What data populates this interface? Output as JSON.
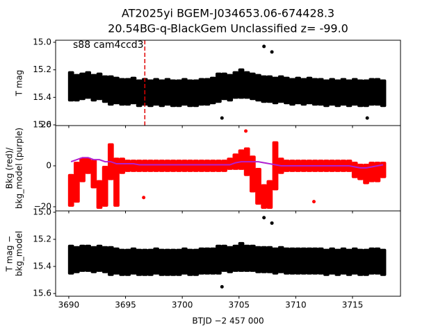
{
  "chart_data": [
    {
      "type": "errorbar",
      "title": [
        "AT2025yi  BGEM-J034653.06-674428.3",
        "20.54BG-q-BlackGem Unclassified z= -99.0"
      ],
      "annotation": "s88 cam4ccd3",
      "marker_x": 3696.7,
      "marker_color": "#e00000",
      "ylabel": [
        "T mag"
      ],
      "xlim": [
        3688.84,
        3719.23
      ],
      "ylim": [
        15.605,
        14.985
      ],
      "yticks": [
        {
          "value": 15.0,
          "label": "15.0"
        },
        15.2,
        15.4,
        15.6
      ],
      "x": [
        3690.2,
        3690.7,
        3691.2,
        3691.7,
        3692.2,
        3692.7,
        3693.2,
        3693.7,
        3694.2,
        3694.7,
        3695.2,
        3695.7,
        3696.2,
        3696.7,
        3697.2,
        3697.7,
        3698.2,
        3698.7,
        3699.2,
        3699.7,
        3700.2,
        3700.7,
        3701.2,
        3701.7,
        3702.2,
        3702.7,
        3703.2,
        3703.7,
        3704.2,
        3704.7,
        3705.2,
        3705.7,
        3706.2,
        3706.7,
        3707.2,
        3707.7,
        3708.2,
        3708.7,
        3709.2,
        3709.7,
        3710.2,
        3710.7,
        3711.2,
        3711.7,
        3712.2,
        3712.7,
        3713.2,
        3713.7,
        3714.2,
        3714.7,
        3715.2,
        3715.7,
        3716.2,
        3716.7,
        3717.2,
        3717.7
      ],
      "series": [
        {
          "color": "#000000",
          "values": [
            15.32,
            15.33,
            15.32,
            15.31,
            15.33,
            15.32,
            15.34,
            15.35,
            15.35,
            15.36,
            15.36,
            15.35,
            15.37,
            15.36,
            15.37,
            15.36,
            15.37,
            15.36,
            15.37,
            15.37,
            15.36,
            15.37,
            15.37,
            15.36,
            15.36,
            15.35,
            15.33,
            15.32,
            15.33,
            15.31,
            15.3,
            15.31,
            15.32,
            15.33,
            15.34,
            15.34,
            15.35,
            15.34,
            15.35,
            15.36,
            15.35,
            15.36,
            15.35,
            15.36,
            15.36,
            15.37,
            15.36,
            15.37,
            15.36,
            15.37,
            15.36,
            15.37,
            15.37,
            15.36,
            15.36,
            15.37
          ],
          "errors": [
            0.11,
            0.1,
            0.1,
            0.1,
            0.1,
            0.1,
            0.1,
            0.11,
            0.1,
            0.1,
            0.1,
            0.1,
            0.1,
            0.1,
            0.1,
            0.1,
            0.1,
            0.1,
            0.1,
            0.1,
            0.1,
            0.1,
            0.1,
            0.1,
            0.1,
            0.1,
            0.11,
            0.1,
            0.1,
            0.1,
            0.11,
            0.1,
            0.1,
            0.1,
            0.1,
            0.1,
            0.1,
            0.1,
            0.1,
            0.1,
            0.1,
            0.1,
            0.1,
            0.1,
            0.1,
            0.1,
            0.1,
            0.1,
            0.1,
            0.1,
            0.1,
            0.1,
            0.1,
            0.1,
            0.1,
            0.1
          ]
        },
        {
          "color": "#000000",
          "style": "points",
          "x": [
            3703.5,
            3707.2,
            3707.9,
            3716.3
          ],
          "values": [
            15.55,
            15.03,
            15.07,
            15.55
          ]
        }
      ]
    },
    {
      "type": "errorbar",
      "ylabel": [
        "Bkg (red)/",
        "bkg_model (purple)"
      ],
      "xlim": [
        3688.84,
        3719.23
      ],
      "ylim": [
        -22.03,
        19.66
      ],
      "yticks": [
        {
          "value": -20,
          "label": "−20"
        },
        0,
        20
      ],
      "x": [
        3690.2,
        3690.7,
        3691.2,
        3691.7,
        3692.2,
        3692.7,
        3693.2,
        3693.7,
        3694.2,
        3694.7,
        3695.2,
        3695.7,
        3696.2,
        3696.7,
        3697.2,
        3697.7,
        3698.2,
        3698.7,
        3699.2,
        3699.7,
        3700.2,
        3700.7,
        3701.2,
        3701.7,
        3702.2,
        3702.7,
        3703.2,
        3703.7,
        3704.2,
        3704.7,
        3705.2,
        3705.7,
        3706.2,
        3706.7,
        3707.2,
        3707.7,
        3708.2,
        3708.7,
        3709.2,
        3709.7,
        3710.2,
        3710.7,
        3711.2,
        3711.7,
        3712.2,
        3712.7,
        3713.2,
        3713.7,
        3714.2,
        3714.7,
        3715.2,
        3715.7,
        3716.2,
        3716.7,
        3717.2,
        3717.7
      ],
      "series": [
        {
          "color": "#ff0000",
          "values": [
            -12,
            -8,
            -2,
            0,
            -4,
            -14,
            -10,
            2,
            -8,
            0,
            0,
            0,
            0,
            0,
            0,
            0,
            0,
            0,
            0,
            0,
            0,
            0,
            0,
            0,
            0,
            0,
            0,
            0,
            1,
            2,
            3,
            2,
            -4,
            -10,
            -15,
            -14,
            0,
            0,
            0,
            0,
            0,
            0,
            0,
            0,
            0,
            0,
            0,
            0,
            0,
            0,
            -2,
            -3,
            -4,
            -3,
            -3,
            -2
          ],
          "errors": [
            8,
            10,
            6,
            4,
            7,
            7,
            10,
            9,
            12,
            4,
            3,
            3,
            3,
            3,
            3,
            3,
            3,
            3,
            3,
            3,
            3,
            3,
            3,
            3,
            3,
            3,
            3,
            3,
            3,
            4,
            5,
            7,
            9,
            9,
            6,
            7,
            12,
            4,
            3,
            3,
            3,
            3,
            3,
            3,
            3,
            3,
            3,
            3,
            3,
            3,
            4,
            4,
            5,
            5,
            5,
            4
          ]
        },
        {
          "color": "#ff0000",
          "style": "points",
          "x": [
            3696.6,
            3705.6,
            3711.6
          ],
          "values": [
            -15.5,
            17,
            -17.5
          ]
        },
        {
          "color": "#b020d0",
          "style": "line",
          "values": [
            2,
            3,
            4,
            4,
            3,
            3,
            2,
            2,
            1,
            1,
            1,
            1,
            0.5,
            0.5,
            0.5,
            0.5,
            0.5,
            0.5,
            0.5,
            0.5,
            0.5,
            0.5,
            0.5,
            0.5,
            0.5,
            0.5,
            0.5,
            0.5,
            0.5,
            1.5,
            2,
            2,
            2,
            2,
            1.5,
            1,
            0.5,
            0,
            0,
            0,
            0,
            0,
            0,
            0,
            0,
            0,
            0,
            0,
            0,
            0,
            -0.5,
            -1,
            -1,
            -0.5,
            0,
            0.5
          ]
        }
      ]
    },
    {
      "type": "errorbar",
      "ylabel": [
        "T mag −",
        "bkg_model"
      ],
      "xlabel": "BTJD −2 457 000",
      "xlim": [
        3688.84,
        3719.23
      ],
      "ylim": [
        15.62,
        14.99
      ],
      "xticks": [
        3690,
        3695,
        3700,
        3705,
        3710,
        3715
      ],
      "yticks": [
        {
          "value": 15.0,
          "label": "15.0"
        },
        15.2,
        15.4,
        15.6
      ],
      "x": [
        3690.2,
        3690.7,
        3691.2,
        3691.7,
        3692.2,
        3692.7,
        3693.2,
        3693.7,
        3694.2,
        3694.7,
        3695.2,
        3695.7,
        3696.2,
        3696.7,
        3697.2,
        3697.7,
        3698.2,
        3698.7,
        3699.2,
        3699.7,
        3700.2,
        3700.7,
        3701.2,
        3701.7,
        3702.2,
        3702.7,
        3703.2,
        3703.7,
        3704.2,
        3704.7,
        3705.2,
        3705.7,
        3706.2,
        3706.7,
        3707.2,
        3707.7,
        3708.2,
        3708.7,
        3709.2,
        3709.7,
        3710.2,
        3710.7,
        3711.2,
        3711.7,
        3712.2,
        3712.7,
        3713.2,
        3713.7,
        3714.2,
        3714.7,
        3715.2,
        3715.7,
        3716.2,
        3716.7,
        3717.2,
        3717.7
      ],
      "series": [
        {
          "color": "#000000",
          "values": [
            15.35,
            15.35,
            15.34,
            15.34,
            15.35,
            15.34,
            15.35,
            15.36,
            15.36,
            15.37,
            15.37,
            15.36,
            15.37,
            15.37,
            15.37,
            15.36,
            15.37,
            15.37,
            15.37,
            15.37,
            15.36,
            15.37,
            15.37,
            15.36,
            15.36,
            15.36,
            15.35,
            15.34,
            15.35,
            15.34,
            15.33,
            15.34,
            15.34,
            15.35,
            15.35,
            15.35,
            15.36,
            15.35,
            15.36,
            15.36,
            15.36,
            15.36,
            15.36,
            15.36,
            15.36,
            15.37,
            15.36,
            15.37,
            15.36,
            15.37,
            15.36,
            15.37,
            15.37,
            15.36,
            15.36,
            15.37
          ],
          "errors": [
            0.11,
            0.1,
            0.1,
            0.1,
            0.1,
            0.1,
            0.1,
            0.11,
            0.1,
            0.1,
            0.1,
            0.1,
            0.1,
            0.1,
            0.1,
            0.1,
            0.1,
            0.1,
            0.1,
            0.1,
            0.1,
            0.1,
            0.1,
            0.1,
            0.1,
            0.1,
            0.11,
            0.1,
            0.1,
            0.1,
            0.11,
            0.1,
            0.1,
            0.1,
            0.1,
            0.1,
            0.1,
            0.1,
            0.1,
            0.1,
            0.1,
            0.1,
            0.1,
            0.1,
            0.1,
            0.1,
            0.1,
            0.1,
            0.1,
            0.1,
            0.1,
            0.1,
            0.1,
            0.1,
            0.1,
            0.1
          ]
        },
        {
          "color": "#000000",
          "style": "points",
          "x": [
            3703.5,
            3707.2,
            3707.9
          ],
          "values": [
            15.55,
            15.04,
            15.08
          ]
        }
      ]
    }
  ]
}
